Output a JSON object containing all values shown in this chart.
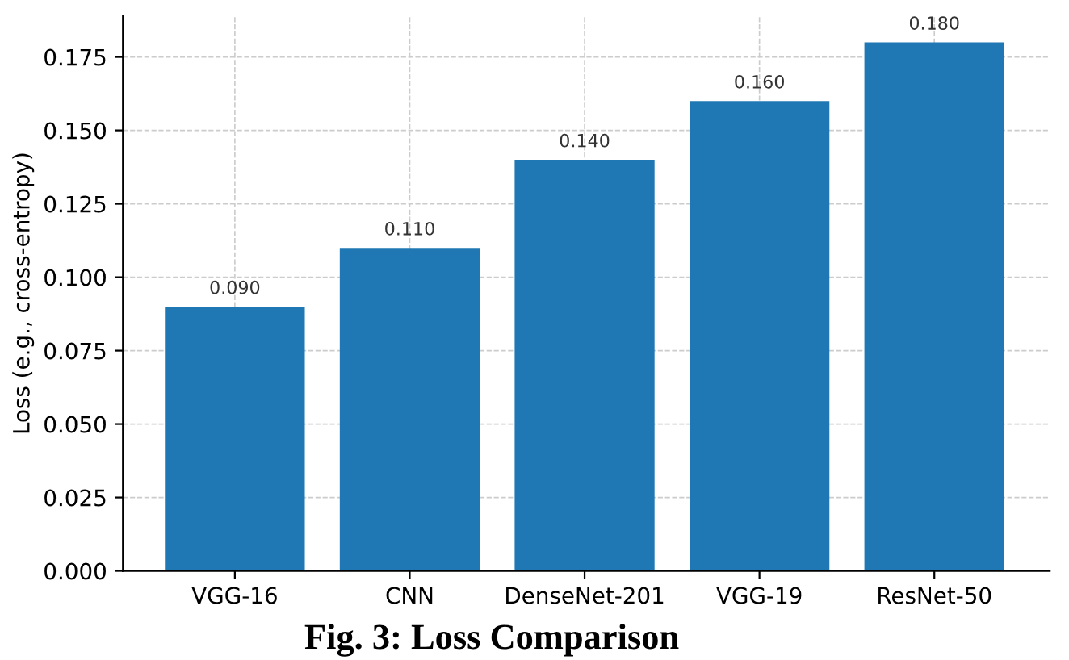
{
  "chart_data": {
    "type": "bar",
    "ylabel": "Loss (e.g., cross-entropy)",
    "categories": [
      "VGG-16",
      "CNN",
      "DenseNet-201",
      "VGG-19",
      "ResNet-50"
    ],
    "values": [
      0.09,
      0.11,
      0.14,
      0.16,
      0.18
    ],
    "color": "#1f77b4",
    "value_labels": [
      "0.090",
      "0.110",
      "0.140",
      "0.160",
      "0.180"
    ],
    "ylim": [
      0,
      0.189
    ],
    "yticks": [
      {
        "value": 0,
        "label": "0.000"
      },
      {
        "value": 0.025,
        "label": "0.025"
      },
      {
        "value": 0.05,
        "label": "0.050"
      },
      {
        "value": 0.075,
        "label": "0.075"
      },
      {
        "value": 0.1,
        "label": "0.100"
      },
      {
        "value": 0.125,
        "label": "0.125"
      },
      {
        "value": 0.15,
        "label": "0.150"
      },
      {
        "value": 0.175,
        "label": "0.175"
      }
    ],
    "grid": true,
    "annotations": [
      "Fig. 3: Loss Comparison"
    ]
  }
}
